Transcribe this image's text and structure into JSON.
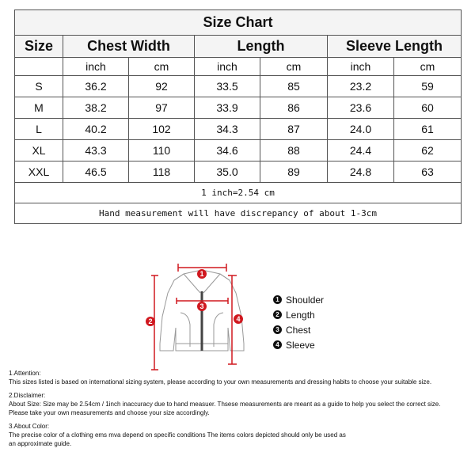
{
  "table": {
    "title": "Size Chart",
    "headers": [
      "Size",
      "Chest Width",
      "Length",
      "Sleeve Length"
    ],
    "units": [
      "inch",
      "cm",
      "inch",
      "cm",
      "inch",
      "cm"
    ],
    "rows": [
      [
        "S",
        "36.2",
        "92",
        "33.5",
        "85",
        "23.2",
        "59"
      ],
      [
        "M",
        "38.2",
        "97",
        "33.9",
        "86",
        "23.6",
        "60"
      ],
      [
        "L",
        "40.2",
        "102",
        "34.3",
        "87",
        "24.0",
        "61"
      ],
      [
        "XL",
        "43.3",
        "110",
        "34.6",
        "88",
        "24.4",
        "62"
      ],
      [
        "XXL",
        "46.5",
        "118",
        "35.0",
        "89",
        "24.8",
        "63"
      ]
    ],
    "conversion": "1 inch=2.54 cm",
    "discrepancy": "Hand measurement will have discrepancy of about 1-3cm"
  },
  "diagram": {
    "markers": [
      "1",
      "2",
      "3",
      "4"
    ],
    "legend": [
      {
        "num": "1",
        "label": "Shoulder"
      },
      {
        "num": "2",
        "label": "Length"
      },
      {
        "num": "3",
        "label": "Chest"
      },
      {
        "num": "4",
        "label": "Sleeve"
      }
    ],
    "accent": "#d0181f"
  },
  "notes": [
    {
      "title": "1.Attention:",
      "lines": [
        "This sizes listed is based on international sizing system, please according to your own measurements and dressing habits to choose your suitable size."
      ]
    },
    {
      "title": "2.Disclaimer:",
      "lines": [
        "About Size: Size may be 2.54cm / 1inch inaccuracy due to hand measuer. Thsese measurements are meant as a guide to help you select the correct size.",
        "Please take your own measurements and choose your size accordingly."
      ]
    },
    {
      "title": "3.About Color:",
      "lines": [
        "The precise color of a clothing ems mva depend on specific conditions The items colors depicted should only be used as",
        "an approximate guide."
      ]
    }
  ]
}
